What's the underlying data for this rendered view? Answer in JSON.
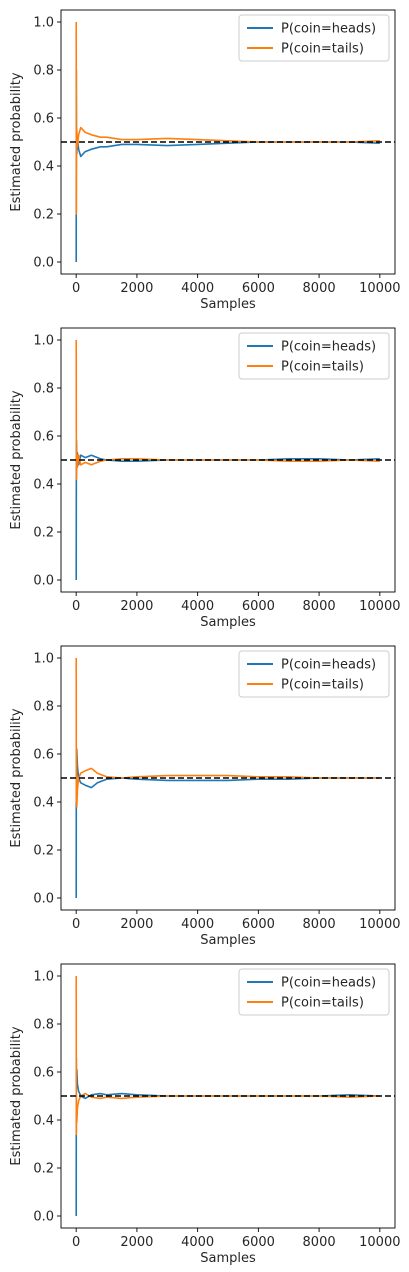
{
  "chart_data": [
    {
      "type": "line",
      "xlabel": "Samples",
      "ylabel": "Estimated probability",
      "xlim": [
        -500,
        10500
      ],
      "ylim": [
        -0.05,
        1.05
      ],
      "xticks": [
        "0",
        "2000",
        "4000",
        "6000",
        "8000",
        "10000"
      ],
      "yticks": [
        "0.0",
        "0.2",
        "0.4",
        "0.6",
        "0.8",
        "1.0"
      ],
      "legend_position": "top-right",
      "reference_line": {
        "y": 0.5,
        "style": "dashed",
        "color": "#000000"
      },
      "series": [
        {
          "name": "P(coin=heads)",
          "color": "#1f77b4",
          "x": [
            1,
            5,
            10,
            20,
            40,
            80,
            150,
            300,
            500,
            800,
            1000,
            1500,
            2000,
            3000,
            4000,
            5000,
            6000,
            7000,
            8000,
            9000,
            10000
          ],
          "values": [
            0.0,
            0.8,
            0.55,
            0.45,
            0.52,
            0.47,
            0.44,
            0.46,
            0.47,
            0.48,
            0.48,
            0.49,
            0.49,
            0.485,
            0.49,
            0.495,
            0.5,
            0.5,
            0.5,
            0.5,
            0.495
          ]
        },
        {
          "name": "P(coin=tails)",
          "color": "#ff7f0e",
          "x": [
            1,
            5,
            10,
            20,
            40,
            80,
            150,
            300,
            500,
            800,
            1000,
            1500,
            2000,
            3000,
            4000,
            5000,
            6000,
            7000,
            8000,
            9000,
            10000
          ],
          "values": [
            1.0,
            0.2,
            0.45,
            0.55,
            0.48,
            0.53,
            0.56,
            0.54,
            0.53,
            0.52,
            0.52,
            0.51,
            0.51,
            0.515,
            0.51,
            0.505,
            0.5,
            0.5,
            0.5,
            0.5,
            0.505
          ]
        }
      ]
    },
    {
      "type": "line",
      "xlabel": "Samples",
      "ylabel": "Estimated probability",
      "xlim": [
        -500,
        10500
      ],
      "ylim": [
        -0.05,
        1.05
      ],
      "xticks": [
        "0",
        "2000",
        "4000",
        "6000",
        "8000",
        "10000"
      ],
      "yticks": [
        "0.0",
        "0.2",
        "0.4",
        "0.6",
        "0.8",
        "1.0"
      ],
      "legend_position": "top-right",
      "reference_line": {
        "y": 0.5,
        "style": "dashed",
        "color": "#000000"
      },
      "series": [
        {
          "name": "P(coin=heads)",
          "color": "#1f77b4",
          "x": [
            1,
            5,
            10,
            20,
            40,
            80,
            150,
            300,
            500,
            800,
            1000,
            1500,
            2000,
            3000,
            4000,
            5000,
            6000,
            7000,
            8000,
            9000,
            10000
          ],
          "values": [
            0.0,
            0.4,
            0.58,
            0.47,
            0.53,
            0.48,
            0.52,
            0.51,
            0.52,
            0.505,
            0.5,
            0.495,
            0.495,
            0.5,
            0.5,
            0.5,
            0.5,
            0.505,
            0.505,
            0.5,
            0.505
          ]
        },
        {
          "name": "P(coin=tails)",
          "color": "#ff7f0e",
          "x": [
            1,
            5,
            10,
            20,
            40,
            80,
            150,
            300,
            500,
            800,
            1000,
            1500,
            2000,
            3000,
            4000,
            5000,
            6000,
            7000,
            8000,
            9000,
            10000
          ],
          "values": [
            1.0,
            0.6,
            0.42,
            0.53,
            0.47,
            0.52,
            0.48,
            0.49,
            0.48,
            0.495,
            0.5,
            0.505,
            0.505,
            0.5,
            0.5,
            0.5,
            0.5,
            0.495,
            0.495,
            0.5,
            0.495
          ]
        }
      ]
    },
    {
      "type": "line",
      "xlabel": "Samples",
      "ylabel": "Estimated probability",
      "xlim": [
        -500,
        10500
      ],
      "ylim": [
        -0.05,
        1.05
      ],
      "xticks": [
        "0",
        "2000",
        "4000",
        "6000",
        "8000",
        "10000"
      ],
      "yticks": [
        "0.0",
        "0.2",
        "0.4",
        "0.6",
        "0.8",
        "1.0"
      ],
      "legend_position": "top-right",
      "reference_line": {
        "y": 0.5,
        "style": "dashed",
        "color": "#000000"
      },
      "series": [
        {
          "name": "P(coin=heads)",
          "color": "#1f77b4",
          "x": [
            1,
            5,
            10,
            20,
            40,
            80,
            150,
            300,
            500,
            700,
            1000,
            1500,
            2000,
            3000,
            4000,
            5000,
            6000,
            7000,
            8000,
            9000,
            10000
          ],
          "values": [
            0.0,
            0.6,
            0.38,
            0.62,
            0.55,
            0.5,
            0.48,
            0.47,
            0.46,
            0.48,
            0.495,
            0.5,
            0.495,
            0.49,
            0.49,
            0.49,
            0.495,
            0.495,
            0.5,
            0.5,
            0.5
          ]
        },
        {
          "name": "P(coin=tails)",
          "color": "#ff7f0e",
          "x": [
            1,
            5,
            10,
            20,
            40,
            80,
            150,
            300,
            500,
            700,
            1000,
            1500,
            2000,
            3000,
            4000,
            5000,
            6000,
            7000,
            8000,
            9000,
            10000
          ],
          "values": [
            1.0,
            0.4,
            0.62,
            0.38,
            0.45,
            0.5,
            0.52,
            0.53,
            0.54,
            0.52,
            0.505,
            0.5,
            0.505,
            0.51,
            0.51,
            0.51,
            0.505,
            0.505,
            0.5,
            0.5,
            0.5
          ]
        }
      ]
    },
    {
      "type": "line",
      "xlabel": "Samples",
      "ylabel": "Estimated probability",
      "xlim": [
        -500,
        10500
      ],
      "ylim": [
        -0.05,
        1.05
      ],
      "xticks": [
        "0",
        "2000",
        "4000",
        "6000",
        "8000",
        "10000"
      ],
      "yticks": [
        "0.0",
        "0.2",
        "0.4",
        "0.6",
        "0.8",
        "1.0"
      ],
      "legend_position": "top-right",
      "reference_line": {
        "y": 0.5,
        "style": "dashed",
        "color": "#000000"
      },
      "series": [
        {
          "name": "P(coin=heads)",
          "color": "#1f77b4",
          "x": [
            1,
            5,
            10,
            20,
            40,
            80,
            150,
            300,
            500,
            800,
            1000,
            1500,
            2000,
            3000,
            4000,
            5000,
            6000,
            7000,
            8000,
            9000,
            10000
          ],
          "values": [
            0.0,
            0.66,
            0.58,
            0.61,
            0.55,
            0.52,
            0.5,
            0.49,
            0.505,
            0.51,
            0.505,
            0.51,
            0.505,
            0.5,
            0.5,
            0.5,
            0.5,
            0.5,
            0.5,
            0.505,
            0.5
          ]
        },
        {
          "name": "P(coin=tails)",
          "color": "#ff7f0e",
          "x": [
            1,
            5,
            10,
            20,
            40,
            80,
            150,
            300,
            500,
            800,
            1000,
            1500,
            2000,
            3000,
            4000,
            5000,
            6000,
            7000,
            8000,
            9000,
            10000
          ],
          "values": [
            1.0,
            0.34,
            0.42,
            0.39,
            0.45,
            0.48,
            0.5,
            0.51,
            0.495,
            0.49,
            0.495,
            0.49,
            0.495,
            0.5,
            0.5,
            0.5,
            0.5,
            0.5,
            0.5,
            0.495,
            0.5
          ]
        }
      ]
    }
  ]
}
